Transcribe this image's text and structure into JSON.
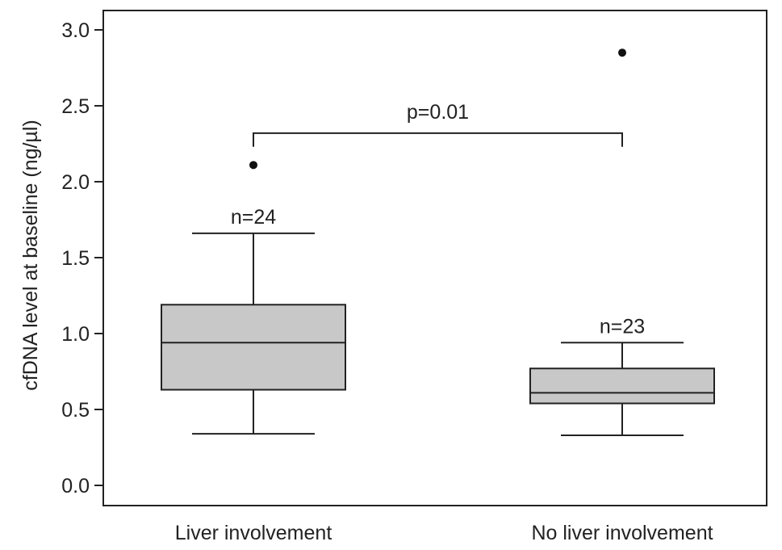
{
  "chart_data": {
    "type": "boxplot",
    "ylabel": "cfDNA level at baseline (ng/µl)",
    "xlabel": "",
    "ylim": [
      0,
      3.2
    ],
    "yticks": [
      0.0,
      0.5,
      1.0,
      1.5,
      2.0,
      2.5,
      3.0
    ],
    "ytick_labels": [
      "0.0",
      "0.5",
      "1.0",
      "1.5",
      "2.0",
      "2.5",
      "3.0"
    ],
    "grid": false,
    "categories": [
      "Liver involvement",
      "No liver involvement"
    ],
    "boxes": [
      {
        "category": "Liver involvement",
        "n_label": "n=24",
        "whisker_low": 0.34,
        "q1": 0.63,
        "median": 0.94,
        "q3": 1.19,
        "whisker_high": 1.66,
        "outliers": [
          2.11
        ],
        "fill": "#c8c8c8"
      },
      {
        "category": "No liver involvement",
        "n_label": "n=23",
        "whisker_low": 0.33,
        "q1": 0.54,
        "median": 0.61,
        "q3": 0.77,
        "whisker_high": 0.94,
        "outliers": [
          2.85
        ],
        "fill": "#c8c8c8"
      }
    ],
    "significance": {
      "label": "p=0.01",
      "between": [
        "Liver involvement",
        "No liver involvement"
      ],
      "y": 2.32,
      "tick_bottom": 2.23
    }
  }
}
